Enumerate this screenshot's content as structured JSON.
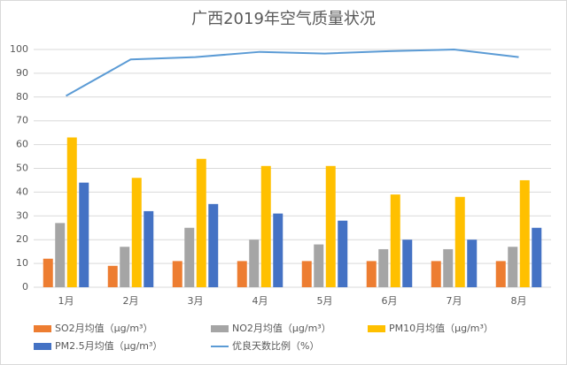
{
  "chart_data": {
    "type": "bar",
    "title": "广西2019年空气质量状况",
    "categories": [
      "1月",
      "2月",
      "3月",
      "4月",
      "5月",
      "6月",
      "7月",
      "8月"
    ],
    "series": [
      {
        "name": "SO2月均值（μg/m³）",
        "color": "#ed7d31",
        "values": [
          12,
          9,
          11,
          11,
          11,
          11,
          11,
          11
        ]
      },
      {
        "name": "NO2月均值（μg/m³）",
        "color": "#a5a5a5",
        "values": [
          27,
          17,
          25,
          20,
          18,
          16,
          16,
          17
        ]
      },
      {
        "name": "PM10月均值（μg/m³）",
        "color": "#ffc000",
        "values": [
          63,
          46,
          54,
          51,
          51,
          39,
          38,
          45
        ]
      },
      {
        "name": "PM2.5月均值（μg/m³）",
        "color": "#4472c4",
        "values": [
          44,
          32,
          35,
          31,
          28,
          20,
          20,
          25
        ]
      },
      {
        "name": "优良天数比例（%）",
        "color": "#5b9bd5",
        "type": "line",
        "values": [
          80.5,
          95.8,
          96.8,
          99,
          98.3,
          99.3,
          100,
          96.8
        ]
      }
    ],
    "ylim": [
      0,
      100
    ],
    "yticks": [
      0,
      10,
      20,
      30,
      40,
      50,
      60,
      70,
      80,
      90,
      100
    ],
    "grid": true
  }
}
